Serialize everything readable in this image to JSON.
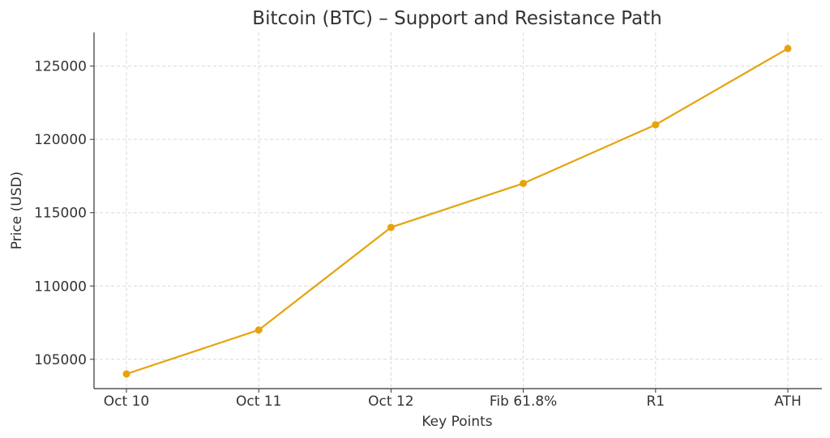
{
  "chart_data": {
    "type": "line",
    "title": "Bitcoin (BTC) – Support and Resistance Path",
    "xlabel": "Key Points",
    "ylabel": "Price (USD)",
    "categories": [
      "Oct 10",
      "Oct 11",
      "Oct 12",
      "Fib 61.8%",
      "R1",
      "ATH"
    ],
    "series": [
      {
        "values": [
          104000,
          107000,
          114000,
          117000,
          121000,
          126200
        ]
      }
    ],
    "yticks": [
      105000,
      110000,
      115000,
      120000,
      125000
    ],
    "ylim": [
      103000,
      127300
    ],
    "grid": true,
    "colors": {
      "series": "#e6a30c",
      "axis": "#333333",
      "grid": "#d9d9d9"
    }
  }
}
